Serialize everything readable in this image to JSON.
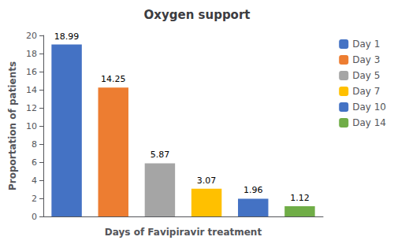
{
  "chart_data": {
    "type": "bar",
    "title": "Oxygen support",
    "xlabel": "Days of Favipiravir treatment",
    "ylabel": "Proportation of patients",
    "categories": [
      "Day 1",
      "Day 3",
      "Day 5",
      "Day 7",
      "Day 10",
      "Day 14"
    ],
    "values": [
      18.99,
      14.25,
      5.87,
      3.07,
      1.96,
      1.12
    ],
    "colors": [
      "#4472C4",
      "#ED7D31",
      "#A5A5A5",
      "#FFC000",
      "#4472C4",
      "#70AD47"
    ],
    "ylim": [
      0,
      20
    ],
    "yticks": [
      0,
      2,
      4,
      6,
      8,
      10,
      12,
      14,
      16,
      18,
      20
    ],
    "grid": false,
    "legend": "right",
    "data_labels": true,
    "tick_labels": "y"
  }
}
